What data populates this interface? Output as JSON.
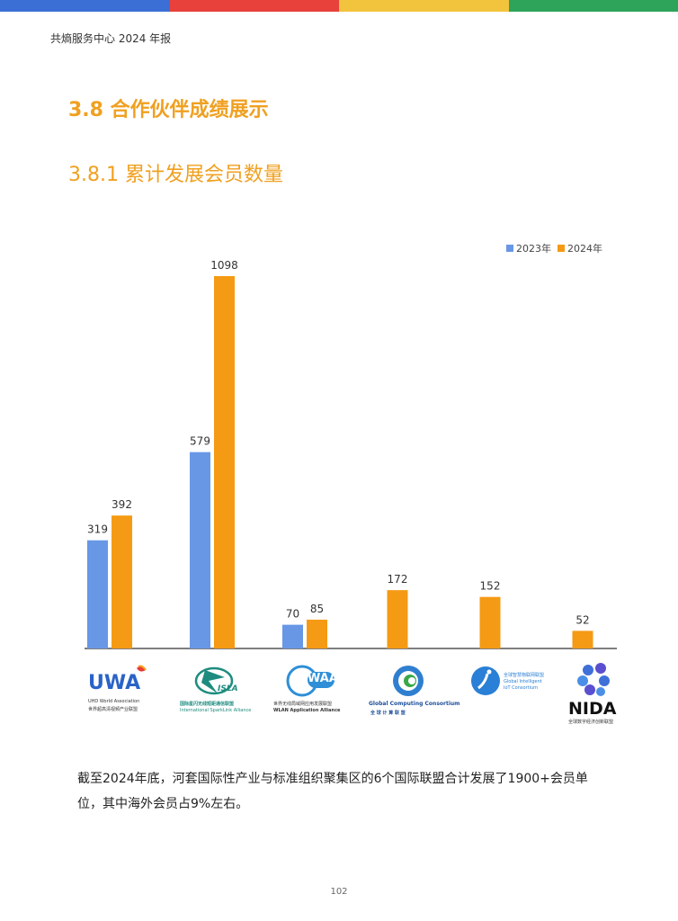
{
  "header": {
    "text": "共熵服务中心 2024 年报"
  },
  "top_bar_colors": [
    "#3b6fd6",
    "#e8403a",
    "#f2c33c",
    "#2ea35a"
  ],
  "section": {
    "title": "3.8 合作伙伴成绩展示",
    "subtitle": "3.8.1 累计发展会员数量",
    "title_color": "#f0a020"
  },
  "chart_data": {
    "type": "bar",
    "categories": [
      "UWA",
      "ISLA",
      "WAA",
      "GCC",
      "GIIC",
      "NIDA"
    ],
    "series": [
      {
        "name": "2023年",
        "color": "#6897e6",
        "values": [
          319,
          579,
          70,
          null,
          null,
          null
        ]
      },
      {
        "name": "2024年",
        "color": "#f59a14",
        "values": [
          392,
          1098,
          85,
          172,
          152,
          52
        ]
      }
    ],
    "ylim": [
      0,
      1098
    ],
    "legend": "top-right",
    "grid": false
  },
  "logos": {
    "uwa": {
      "mark": "UWA",
      "line1": "UHD World Association",
      "line2": "世界超高清视频产业联盟"
    },
    "isla": {
      "mark": "ISLA",
      "line1": "国际星闪无线短距通信联盟",
      "line2": "International SparkLink Alliance"
    },
    "waa": {
      "mark": "WAA",
      "line1": "世界无线局域网应用发展联盟",
      "line2": "WLAN Application Alliance"
    },
    "gcc": {
      "line1": "Global Computing Consortium",
      "line2": "全 球 计 算 联 盟"
    },
    "giic": {
      "line1": "全球智慧物联网联盟",
      "line2": "Global Intelligent",
      "line3": "IoT Consortium"
    },
    "nida": {
      "mark": "NIDA",
      "line1": "全球数字经济创新联盟"
    }
  },
  "body": {
    "text": "截至2024年底，河套国际性产业与标准组织聚集区的6个国际联盟合计发展了1900+会员单位，其中海外会员占9%左右。"
  },
  "page": {
    "number": "102"
  }
}
